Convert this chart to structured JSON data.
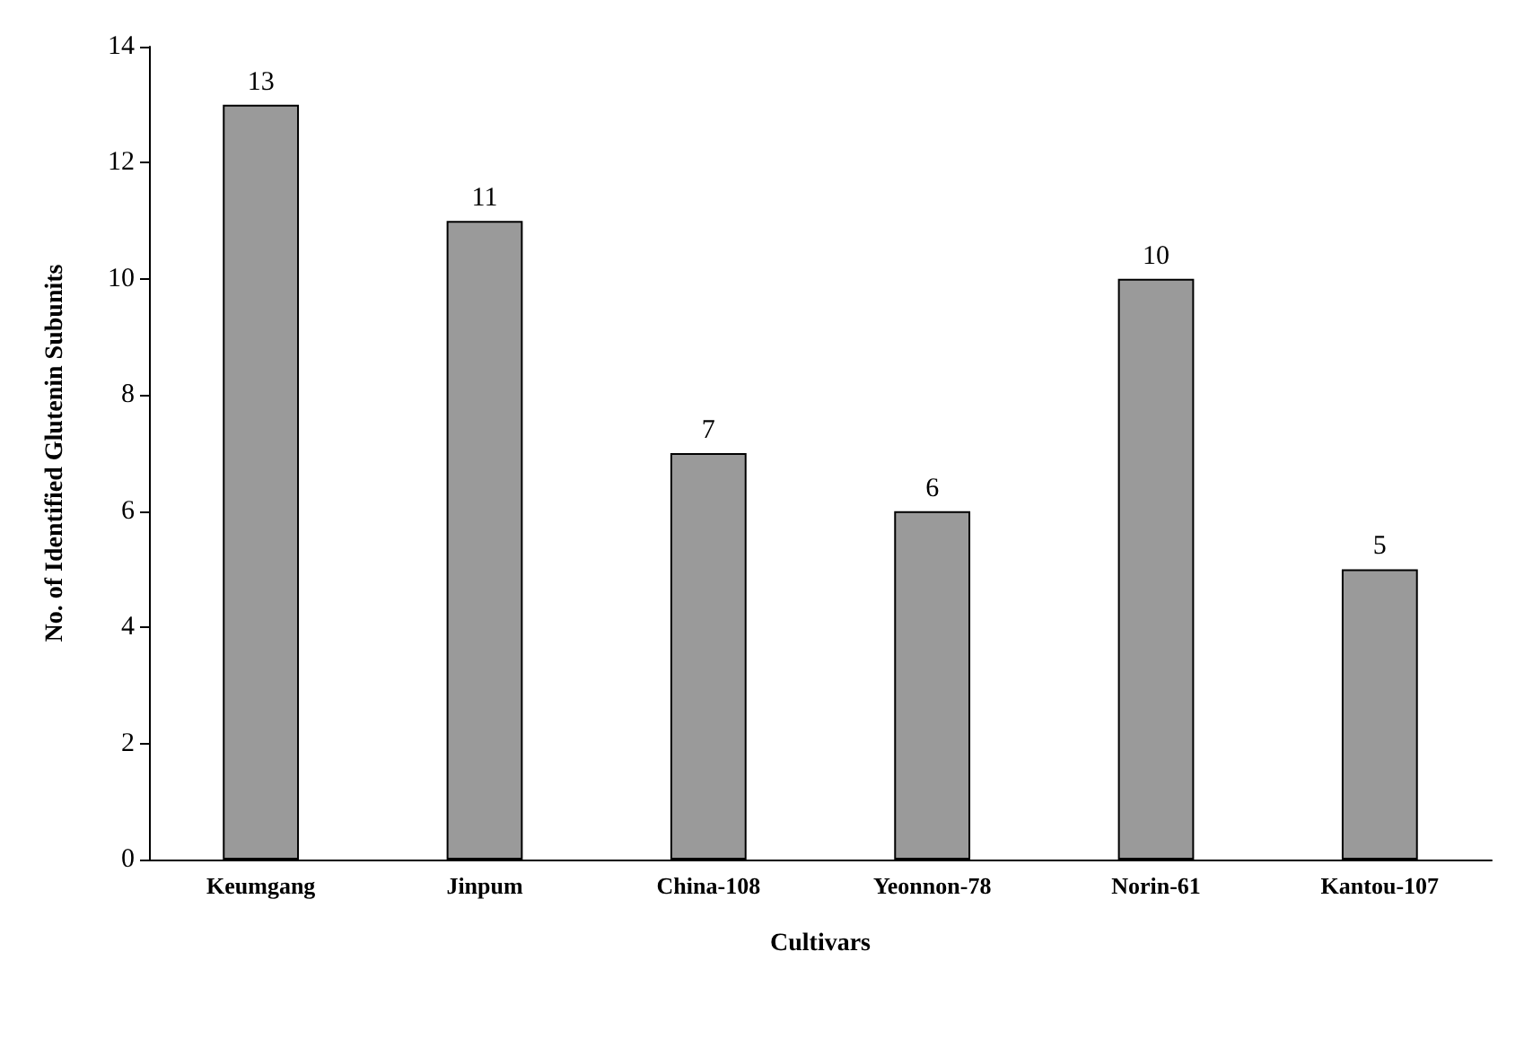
{
  "chart_data": {
    "type": "bar",
    "xlabel": "Cultivars",
    "ylabel": "No. of Identified Glutenin Subunits",
    "categories": [
      "Keumgang",
      "Jinpum",
      "China-108",
      "Yeonnon-78",
      "Norin-61",
      "Kantou-107"
    ],
    "values": [
      13,
      11,
      7,
      6,
      10,
      5
    ],
    "color": "#9a9a9a",
    "ylim": [
      0,
      14
    ],
    "yticks": [
      0,
      2,
      4,
      6,
      8,
      10,
      12,
      14
    ],
    "data_labels": true
  }
}
